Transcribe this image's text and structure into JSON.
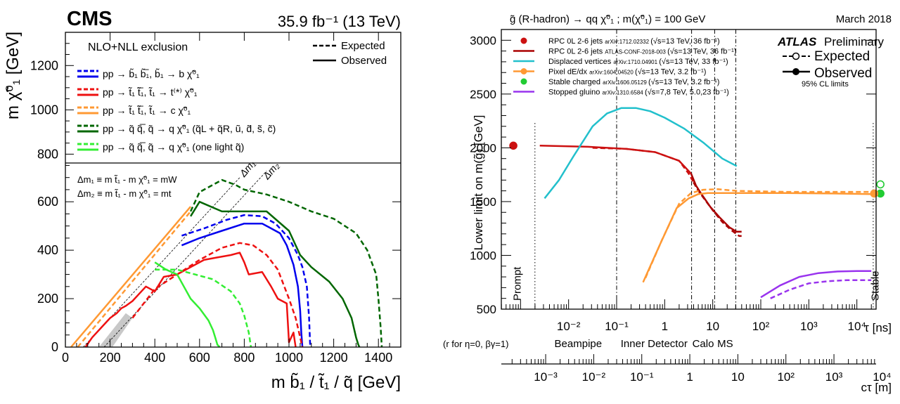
{
  "chart_data": [
    {
      "type": "line",
      "panel": "cms",
      "brand": "CMS",
      "lumi": "35.9 fb⁻¹ (13 TeV)",
      "xlabel": "m b̃₁ / t̃₁ / q̃ [GeV]",
      "ylabel": "m χ̃⁰₁ [GeV]",
      "xlim": [
        0,
        1500
      ],
      "ylim": [
        0,
        760
      ],
      "legend_ylim": [
        760,
        1350
      ],
      "xticks": [
        "0",
        "200",
        "400",
        "600",
        "800",
        "1000",
        "1200",
        "1400"
      ],
      "yticks_main": [
        "0",
        "200",
        "400",
        "600"
      ],
      "yticks_top": [
        "800",
        "1000",
        "1200"
      ],
      "legend_header": "NLO+NLL exclusion",
      "style_legend": [
        "Expected",
        "Observed"
      ],
      "series_labels": [
        "pp → b̃₁ b̃̅₁, b̃₁ → b χ̃⁰₁",
        "pp → t̃₁ t̃̅₁, t̃₁ → t⁽*⁾ χ̃⁰₁",
        "pp → t̃₁ t̃̅₁, t̃₁ → c χ̃⁰₁",
        "pp → q̃ q̃̅, q̃ → q χ̃⁰₁ (q̃L + q̃R, ũ, d̃, s̃, c̃)",
        "pp → q̃ q̃̅, q̃ → q χ̃⁰₁ (one light q̃)"
      ],
      "diag_labels": [
        "Δm₁",
        "Δm₂"
      ],
      "dm_defs": [
        "Δm₁ ≡ m t̃₁ - m χ̃⁰₁ = mW",
        "Δm₂ ≡ m t̃₁ - m χ̃⁰₁ = mt"
      ],
      "colors": {
        "sbottom": "#0000ee",
        "stop_t": "#ee1111",
        "stop_c": "#ff9933",
        "squark8": "#006600",
        "squark1": "#33ee33",
        "gray": "#c8c8c8"
      },
      "series": [
        {
          "name": "sbottom",
          "style": "obs",
          "color": "sbottom",
          "x": [
            520,
            600,
            700,
            800,
            880,
            900,
            960,
            990,
            1020,
            1040,
            1050,
            1055,
            1060
          ],
          "y": [
            420,
            450,
            480,
            510,
            510,
            500,
            470,
            420,
            340,
            250,
            150,
            60,
            0
          ]
        },
        {
          "name": "sbottom",
          "style": "exp",
          "color": "sbottom",
          "x": [
            520,
            620,
            720,
            800,
            880,
            940,
            1000,
            1040,
            1060,
            1070,
            1080,
            1090,
            1095
          ],
          "y": [
            460,
            490,
            525,
            545,
            540,
            510,
            450,
            380,
            330,
            290,
            250,
            120,
            0
          ]
        },
        {
          "name": "stop_t",
          "style": "obs",
          "color": "stop_t",
          "x": [
            90,
            120,
            160,
            200,
            230,
            250,
            270,
            300,
            330,
            360,
            400,
            440,
            500,
            560,
            620,
            680,
            740,
            780,
            800,
            820,
            880,
            920,
            950,
            990,
            1000,
            1020,
            1030
          ],
          "y": [
            0,
            40,
            80,
            120,
            140,
            160,
            170,
            190,
            220,
            250,
            230,
            290,
            300,
            330,
            360,
            370,
            380,
            390,
            350,
            300,
            310,
            250,
            200,
            180,
            20,
            60,
            0
          ]
        },
        {
          "name": "stop_t",
          "style": "exp",
          "color": "stop_t",
          "x": [
            300,
            400,
            500,
            600,
            700,
            780,
            840,
            900,
            950,
            1000,
            1030,
            1040,
            1060
          ],
          "y": [
            120,
            240,
            300,
            360,
            410,
            430,
            420,
            380,
            320,
            200,
            120,
            80,
            0
          ]
        },
        {
          "name": "stop_c",
          "style": "obs",
          "color": "stop_c",
          "x": [
            25,
            560
          ],
          "y": [
            0,
            580
          ]
        },
        {
          "name": "stop_c",
          "style": "exp",
          "color": "stop_c",
          "x": [
            55,
            560
          ],
          "y": [
            0,
            560
          ]
        },
        {
          "name": "squark8",
          "style": "obs",
          "color": "squark8",
          "x": [
            560,
            600,
            700,
            800,
            900,
            1000,
            1050,
            1100,
            1180,
            1240,
            1280,
            1300,
            1310,
            1315
          ],
          "y": [
            540,
            600,
            560,
            560,
            560,
            480,
            380,
            330,
            270,
            200,
            120,
            40,
            10,
            0
          ]
        },
        {
          "name": "squark8",
          "style": "exp",
          "color": "squark8",
          "x": [
            560,
            600,
            700,
            760,
            800,
            900,
            1000,
            1100,
            1200,
            1300,
            1350,
            1390,
            1400,
            1410,
            1415
          ],
          "y": [
            560,
            640,
            690,
            670,
            650,
            630,
            600,
            560,
            530,
            470,
            400,
            300,
            200,
            80,
            0
          ]
        },
        {
          "name": "squark1",
          "style": "obs",
          "color": "squark1",
          "x": [
            400,
            450,
            500,
            530,
            560,
            600,
            640,
            660,
            670,
            680,
            690
          ],
          "y": [
            350,
            320,
            300,
            250,
            200,
            160,
            110,
            70,
            40,
            10,
            0
          ]
        },
        {
          "name": "squark1",
          "style": "exp",
          "color": "squark1",
          "x": [
            400,
            500,
            580,
            660,
            740,
            780,
            800,
            820,
            830
          ],
          "y": [
            320,
            320,
            300,
            280,
            230,
            180,
            130,
            60,
            0
          ]
        }
      ]
    },
    {
      "type": "line",
      "panel": "atlas",
      "title": "g̃ (R-hadron) → qq χ̃⁰₁ ; m(χ̃⁰₁) = 100 GeV",
      "date": "March 2018",
      "brand": "ATLAS",
      "brand_suffix": " Preliminary",
      "style_legend": [
        "Expected",
        "Observed"
      ],
      "cl_note": "95% CL limits",
      "ylabel": "Lower limit on m(g̃) [GeV]",
      "xlabel_tau": "τ [ns]",
      "xlabel_ctau": "cτ [m]",
      "xlim_log10": [
        -3.4,
        4.4
      ],
      "ylim": [
        500,
        3100
      ],
      "yticks": [
        "500",
        "1000",
        "1500",
        "2000",
        "2500",
        "3000"
      ],
      "tau_ticks": [
        "10⁻²",
        "10⁻¹",
        "1",
        "10",
        "10²",
        "10³",
        "10⁴"
      ],
      "ctau_ticks": [
        "10⁻³",
        "10⁻²",
        "10⁻¹",
        "1",
        "10",
        "10²",
        "10³",
        "10⁴"
      ],
      "region_note": "(r for η=0, βγ=1)",
      "regions": [
        "Beampipe",
        "Inner Detector",
        "Calo",
        "MS"
      ],
      "side_labels": [
        "Prompt",
        "Stable"
      ],
      "legend": [
        {
          "label": "RPC 0L 2-6 jets",
          "ref": "arXiv:1712.02332",
          "info": "(√s=13 TeV, 36 fb⁻¹)",
          "color": "#cc1111",
          "marker": "dot"
        },
        {
          "label": "RPC 0L 2-6 jets",
          "ref": "ATLAS-CONF-2018-003",
          "info": "(√s=13 TeV, 36 fb⁻¹)",
          "color": "#aa0000",
          "marker": "line"
        },
        {
          "label": "Displaced vertices",
          "ref": "arXiv:1710.04901",
          "info": "(√s=13 TeV, 33 fb⁻¹)",
          "color": "#22c0cc",
          "marker": "line"
        },
        {
          "label": "Pixel dE/dx",
          "ref": "arXiv:1604.04520",
          "info": "(√s=13 TeV, 3.2 fb⁻¹)",
          "color": "#ff9933",
          "marker": "linedot"
        },
        {
          "label": "Stable charged",
          "ref": "arXiv:1606.05129",
          "info": "(√s=13 TeV, 3.2 fb⁻¹)",
          "color": "#22cc33",
          "marker": "dot"
        },
        {
          "label": "Stopped gluino",
          "ref": "arXiv:1310.6584",
          "info": "(√s=7,8 TeV, 5.0,23 fb⁻¹)",
          "color": "#9933ee",
          "marker": "line"
        }
      ],
      "series": [
        {
          "name": "RPC 0L prompt",
          "style": "obs",
          "color": "#cc1111",
          "log10tau": [
            -2.6,
            -1.6,
            -0.8,
            -0.2,
            0.3,
            0.55
          ],
          "y": [
            2020,
            2010,
            1990,
            1960,
            1880,
            1760
          ]
        },
        {
          "name": "RPC 0L prompt",
          "style": "exp",
          "color": "#cc1111",
          "log10tau": [
            -1.5,
            -0.8,
            -0.2,
            0.3,
            0.5,
            0.6
          ],
          "y": [
            2000,
            1990,
            1960,
            1880,
            1760,
            1680
          ]
        },
        {
          "name": "RPC 0L displaced",
          "style": "obs",
          "color": "#aa0000",
          "log10tau": [
            0.55,
            0.65,
            0.75,
            0.95,
            1.15,
            1.35,
            1.5,
            1.6
          ],
          "y": [
            1760,
            1650,
            1580,
            1450,
            1350,
            1260,
            1220,
            1220
          ]
        },
        {
          "name": "RPC 0L displaced",
          "style": "exp",
          "color": "#aa0000",
          "log10tau": [
            0.6,
            0.7,
            0.8,
            1.0,
            1.2,
            1.4,
            1.55,
            1.6
          ],
          "y": [
            1680,
            1600,
            1540,
            1420,
            1310,
            1230,
            1180,
            1180
          ]
        },
        {
          "name": "Displaced vertices",
          "style": "obs",
          "color": "#22c0cc",
          "log10tau": [
            -2.5,
            -2.2,
            -1.9,
            -1.5,
            -1.2,
            -0.9,
            -0.6,
            -0.3,
            0,
            0.4,
            0.8,
            1.2,
            1.5
          ],
          "y": [
            1530,
            1700,
            1920,
            2200,
            2320,
            2370,
            2370,
            2340,
            2280,
            2180,
            2050,
            1900,
            1830
          ]
        },
        {
          "name": "Pixel dE/dx",
          "style": "obs",
          "color": "#ff9933",
          "log10tau": [
            -0.45,
            -0.1,
            0.25,
            0.5,
            0.7,
            0.9,
            1.2,
            1.6,
            2.5,
            3.5,
            4.3
          ],
          "y": [
            750,
            1100,
            1440,
            1530,
            1570,
            1580,
            1580,
            1580,
            1580,
            1575,
            1570
          ]
        },
        {
          "name": "Pixel dE/dx",
          "style": "exp",
          "color": "#ff9933",
          "log10tau": [
            -0.4,
            -0.05,
            0.3,
            0.55,
            0.8,
            1.1,
            1.5,
            2.5,
            3.5,
            4.3
          ],
          "y": [
            790,
            1150,
            1480,
            1580,
            1610,
            1615,
            1600,
            1590,
            1590,
            1590
          ]
        },
        {
          "name": "Stopped gluino",
          "style": "obs",
          "color": "#9933ee",
          "log10tau": [
            2.0,
            2.4,
            2.8,
            3.2,
            3.6,
            4.0,
            4.3
          ],
          "y": [
            610,
            720,
            800,
            835,
            850,
            855,
            855
          ]
        },
        {
          "name": "Stopped gluino",
          "style": "exp",
          "color": "#9933ee",
          "log10tau": [
            2.2,
            2.6,
            3.0,
            3.4,
            3.8,
            4.3
          ],
          "y": [
            600,
            680,
            740,
            760,
            770,
            770
          ]
        },
        {
          "name": "Stable charged",
          "style": "point",
          "color": "#22cc33",
          "log10tau": [
            4.49
          ],
          "y": [
            1575
          ]
        },
        {
          "name": "Stable charged",
          "style": "point-open",
          "color": "#22cc33",
          "log10tau": [
            4.49
          ],
          "y": [
            1660
          ]
        },
        {
          "name": "RPC 0L prompt",
          "style": "point",
          "color": "#cc1111",
          "log10tau": [
            -3.15
          ],
          "y": [
            2020
          ]
        },
        {
          "name": "Pixel dE/dx",
          "style": "point",
          "color": "#ff9933",
          "log10tau": [
            4.36
          ],
          "y": [
            1575
          ]
        }
      ]
    }
  ]
}
